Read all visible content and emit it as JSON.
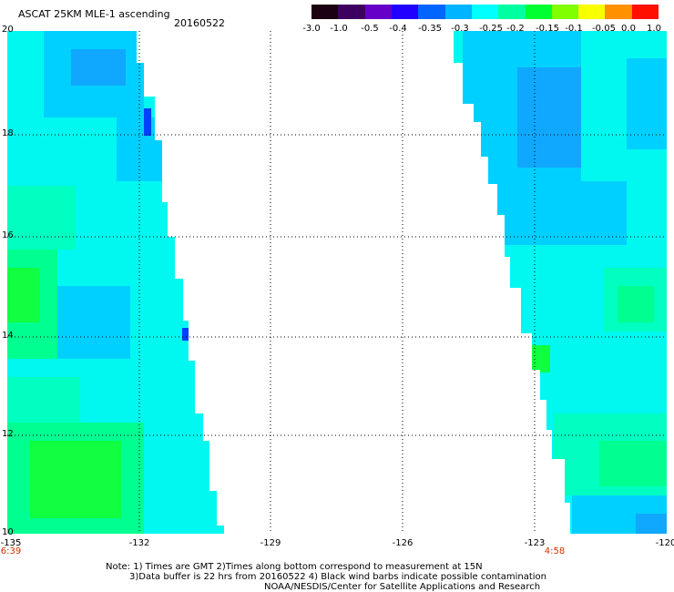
{
  "header": {
    "title": "ASCAT 25KM MLE-1 ascending",
    "date": "20160522"
  },
  "colorbar": {
    "colors": [
      "#1a0010",
      "#3d0060",
      "#6600c8",
      "#2000ff",
      "#0066ff",
      "#00b4ff",
      "#00ffff",
      "#00ffa0",
      "#00ff30",
      "#80ff00",
      "#f8ff00",
      "#ff9000",
      "#ff1000"
    ],
    "labels": [
      "-3.0",
      "-1.0",
      "-0.5",
      "-0.4",
      "-0.35",
      "-0.3",
      "-0.25",
      "-0.2",
      "-0.15",
      "-0.1",
      "-0.05",
      "0.0",
      "1.0"
    ]
  },
  "map": {
    "y_labels": [
      "20",
      "18",
      "16",
      "14",
      "12",
      "10"
    ],
    "x_labels": [
      "-135",
      "-132",
      "-129",
      "-126",
      "-123",
      "-120"
    ],
    "time_labels": [
      "6:39",
      "4:58"
    ],
    "cell_colors": {
      "blue": "#10a8ff",
      "sky": "#00d0ff",
      "cyan": "#00f8f0",
      "aqua": "#00ffc0",
      "mint": "#00ff90",
      "green": "#10ff40",
      "deepblue": "#0040ff"
    }
  },
  "notes": {
    "line1": "Note: 1) Times are GMT 2)Times along bottom correspond to measurement at 15N",
    "line2": "3)Data buffer is 22 hrs from 20160522 4) Black wind barbs indicate possible contamination",
    "line3": "NOAA/NESDIS/Center for Satellite Applications and Research"
  }
}
